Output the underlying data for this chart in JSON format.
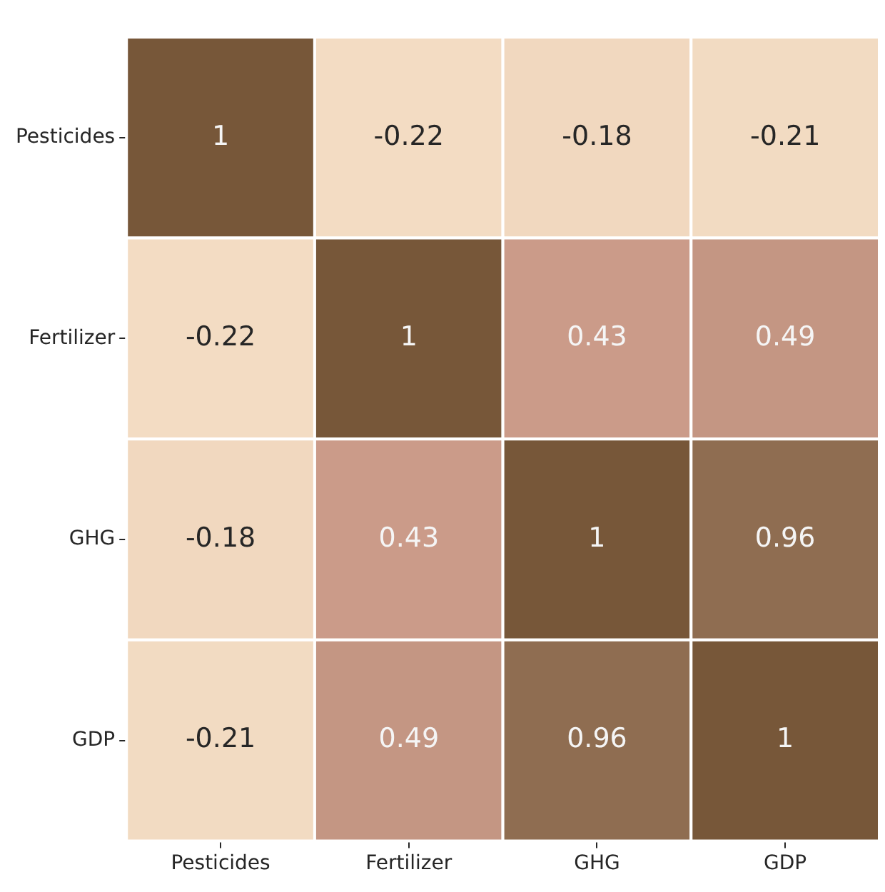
{
  "chart_data": {
    "type": "heatmap",
    "categories": [
      "Pesticides",
      "Fertilizer",
      "GHG",
      "GDP"
    ],
    "y_categories": [
      "Pesticides",
      "Fertilizer",
      "GHG",
      "GDP"
    ],
    "cells": [
      [
        1,
        -0.22,
        -0.18,
        -0.21
      ],
      [
        -0.22,
        1,
        0.43,
        0.49
      ],
      [
        -0.18,
        0.43,
        1,
        0.96
      ],
      [
        -0.21,
        0.49,
        0.96,
        1
      ]
    ],
    "data_labels": true
  }
}
